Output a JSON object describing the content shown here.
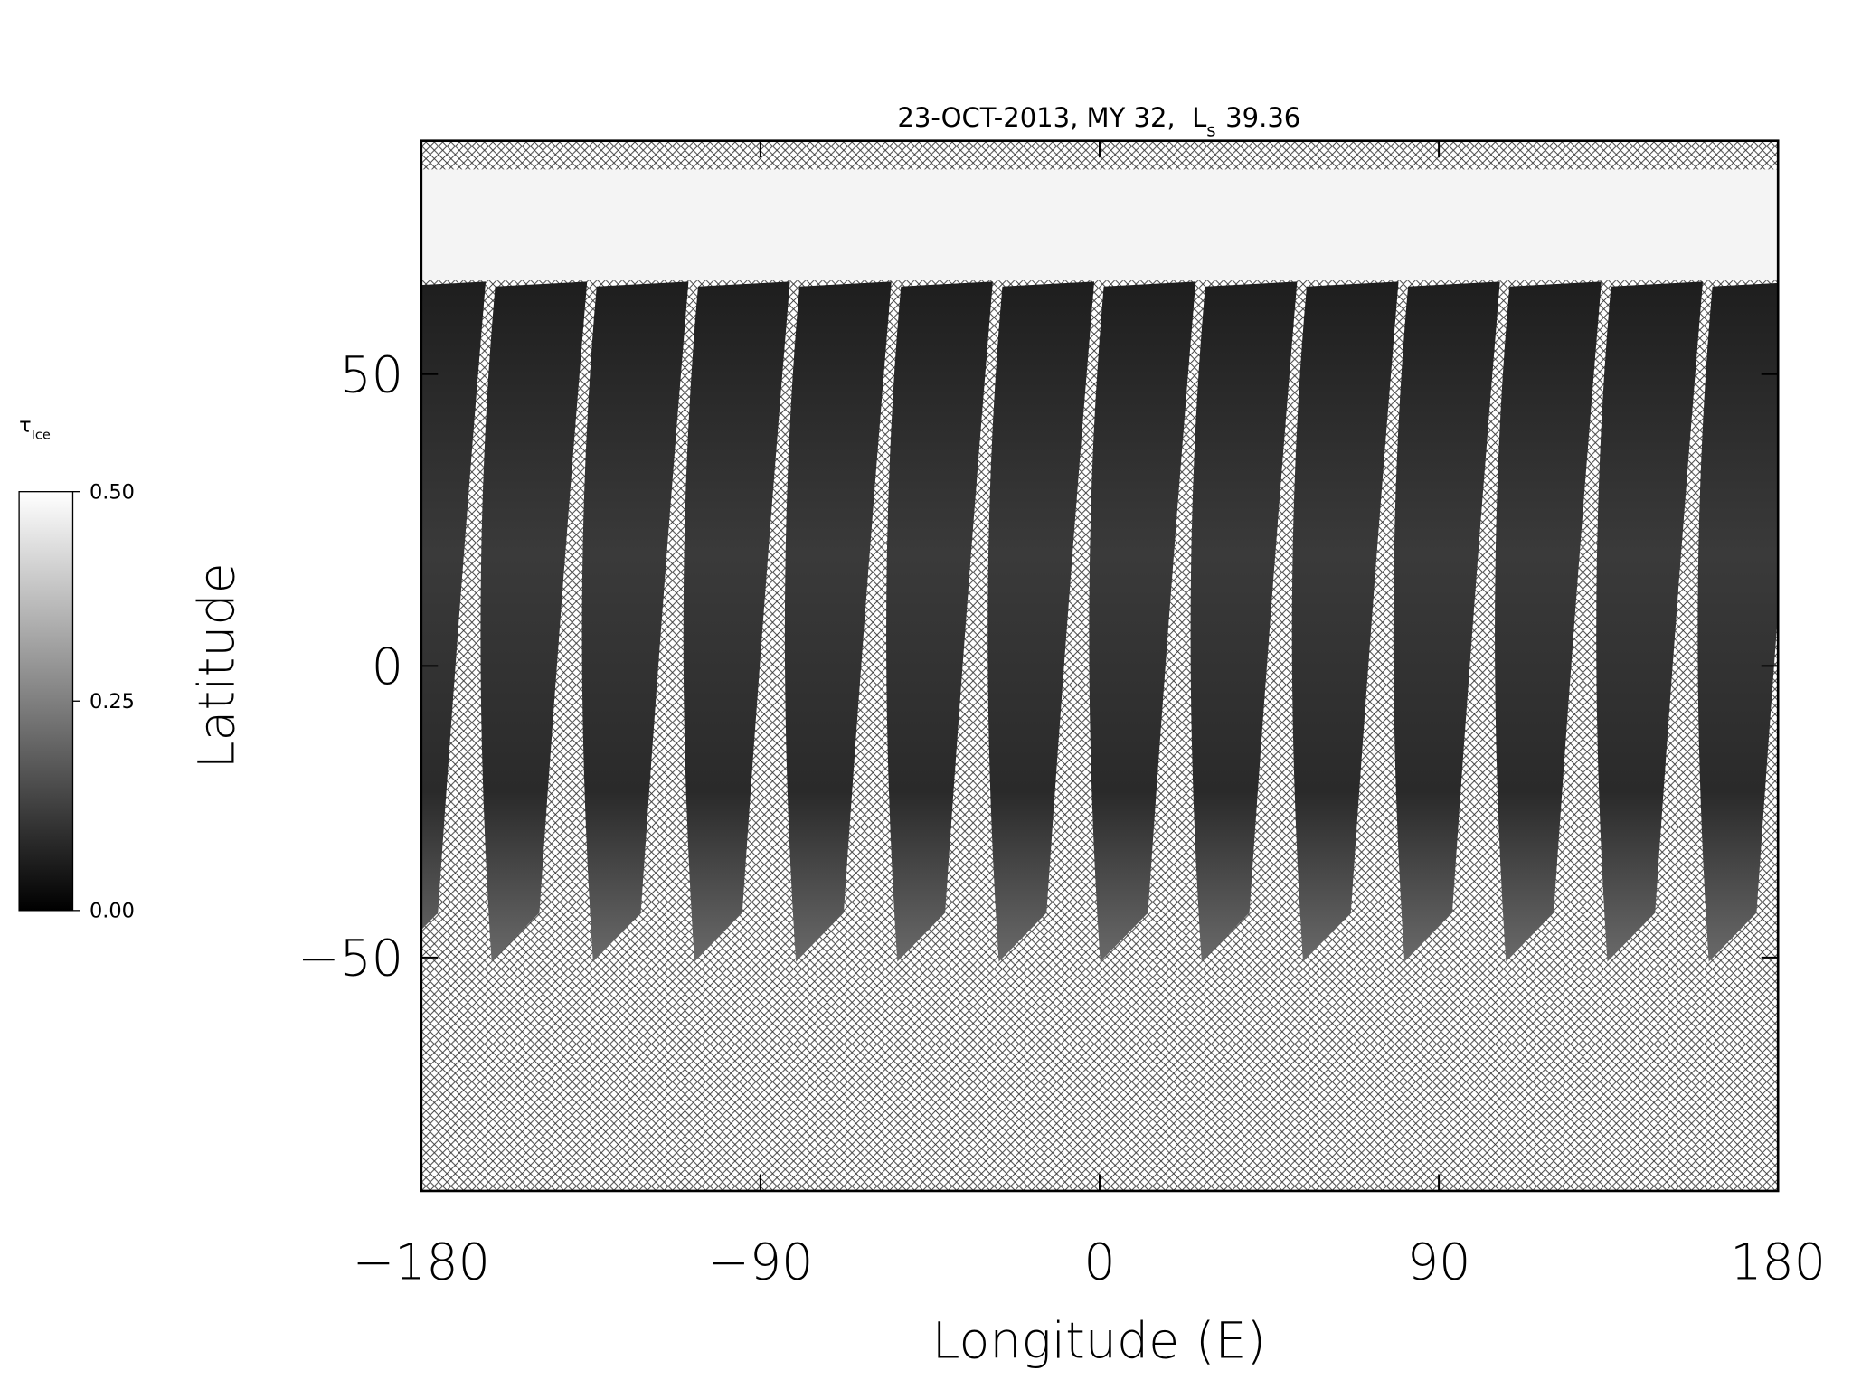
{
  "chart_data": {
    "type": "map",
    "title": [
      "23-OCT-2013, MY 32,",
      "L",
      "s",
      "39.36"
    ],
    "x_label": "Longitude (E)",
    "y_label": "Latitude",
    "xlim": [
      -180,
      180
    ],
    "ylim": [
      -90,
      90
    ],
    "xticks": [
      {
        "value": -180,
        "label": "−180"
      },
      {
        "value": -90,
        "label": "−90"
      },
      0,
      90,
      180
    ],
    "yticks": [
      {
        "value": -50,
        "label": "−50"
      },
      0,
      50
    ],
    "colorbar": {
      "label": [
        "τ",
        "Ice"
      ],
      "lim": [
        0,
        0.5
      ],
      "ticks": [
        {
          "value": 0,
          "label": "0.00"
        },
        {
          "value": 0.25,
          "label": "0.25"
        },
        {
          "value": 0.5,
          "label": "0.50"
        }
      ]
    }
  }
}
